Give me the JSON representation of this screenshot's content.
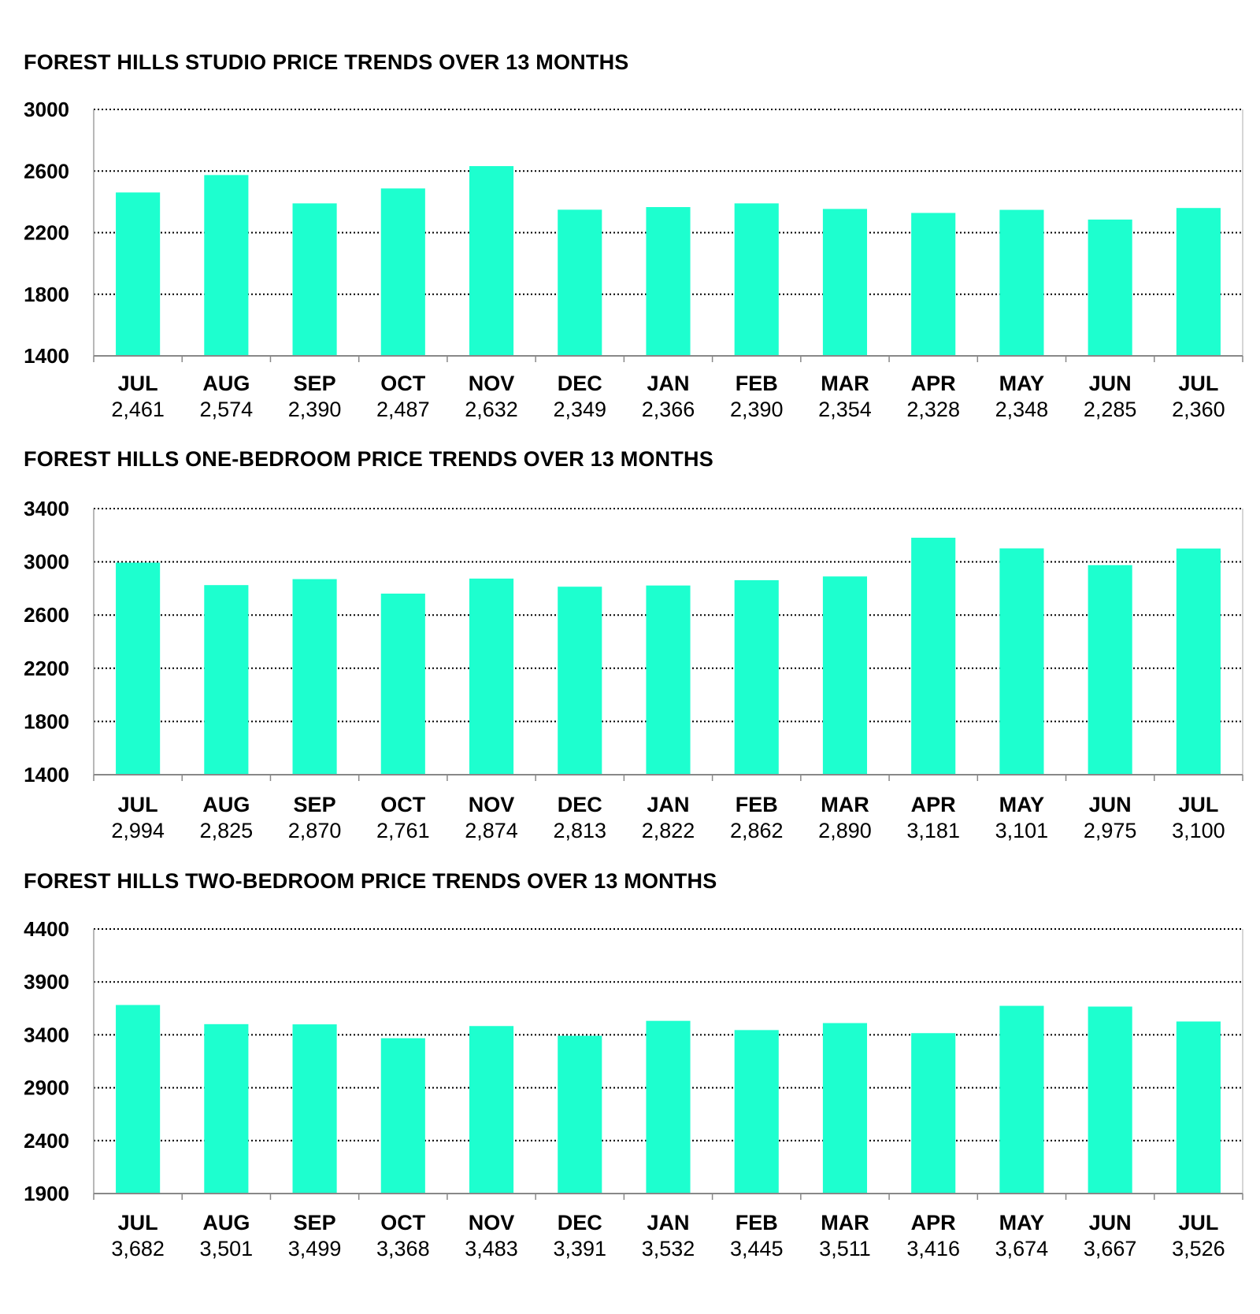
{
  "chart_data": [
    {
      "type": "bar",
      "title": "FOREST HILLS STUDIO PRICE TRENDS OVER 13 MONTHS",
      "categories": [
        "JUL",
        "AUG",
        "SEP",
        "OCT",
        "NOV",
        "DEC",
        "JAN",
        "FEB",
        "MAR",
        "APR",
        "MAY",
        "JUN",
        "JUL"
      ],
      "values": [
        2461,
        2574,
        2390,
        2487,
        2632,
        2349,
        2366,
        2390,
        2354,
        2328,
        2348,
        2285,
        2360
      ],
      "value_labels": [
        "2,461",
        "2,574",
        "2,390",
        "2,487",
        "2,632",
        "2,349",
        "2,366",
        "2,390",
        "2,354",
        "2,328",
        "2,348",
        "2,285",
        "2,360"
      ],
      "yticks": [
        1400,
        1800,
        2200,
        2600,
        3000
      ],
      "ytick_labels": [
        "1400",
        "1800",
        "2200",
        "2600",
        "3000"
      ],
      "ylim": [
        1400,
        3000
      ],
      "grid": true,
      "bar_color": "#1DFFCF"
    },
    {
      "type": "bar",
      "title": "FOREST HILLS ONE-BEDROOM PRICE TRENDS OVER 13 MONTHS",
      "categories": [
        "JUL",
        "AUG",
        "SEP",
        "OCT",
        "NOV",
        "DEC",
        "JAN",
        "FEB",
        "MAR",
        "APR",
        "MAY",
        "JUN",
        "JUL"
      ],
      "values": [
        2994,
        2825,
        2870,
        2761,
        2874,
        2813,
        2822,
        2862,
        2890,
        3181,
        3101,
        2975,
        3100
      ],
      "value_labels": [
        "2,994",
        "2,825",
        "2,870",
        "2,761",
        "2,874",
        "2,813",
        "2,822",
        "2,862",
        "2,890",
        "3,181",
        "3,101",
        "2,975",
        "3,100"
      ],
      "yticks": [
        1400,
        1800,
        2200,
        2600,
        3000,
        3400
      ],
      "ytick_labels": [
        "1400",
        "1800",
        "2200",
        "2600",
        "3000",
        "3400"
      ],
      "ylim": [
        1400,
        3400
      ],
      "grid": true,
      "bar_color": "#1DFFCF"
    },
    {
      "type": "bar",
      "title": "FOREST HILLS TWO-BEDROOM PRICE TRENDS OVER 13 MONTHS",
      "categories": [
        "JUL",
        "AUG",
        "SEP",
        "OCT",
        "NOV",
        "DEC",
        "JAN",
        "FEB",
        "MAR",
        "APR",
        "MAY",
        "JUN",
        "JUL"
      ],
      "values": [
        3682,
        3501,
        3499,
        3368,
        3483,
        3391,
        3532,
        3445,
        3511,
        3416,
        3674,
        3667,
        3526
      ],
      "value_labels": [
        "3,682",
        "3,501",
        "3,499",
        "3,368",
        "3,483",
        "3,391",
        "3,532",
        "3,445",
        "3,511",
        "3,416",
        "3,674",
        "3,667",
        "3,526"
      ],
      "yticks": [
        1900,
        2400,
        2900,
        3400,
        3900,
        4400
      ],
      "ytick_labels": [
        "1900",
        "2400",
        "2900",
        "3400",
        "3900",
        "4400"
      ],
      "ylim": [
        1900,
        4400
      ],
      "grid": true,
      "bar_color": "#1DFFCF"
    }
  ]
}
